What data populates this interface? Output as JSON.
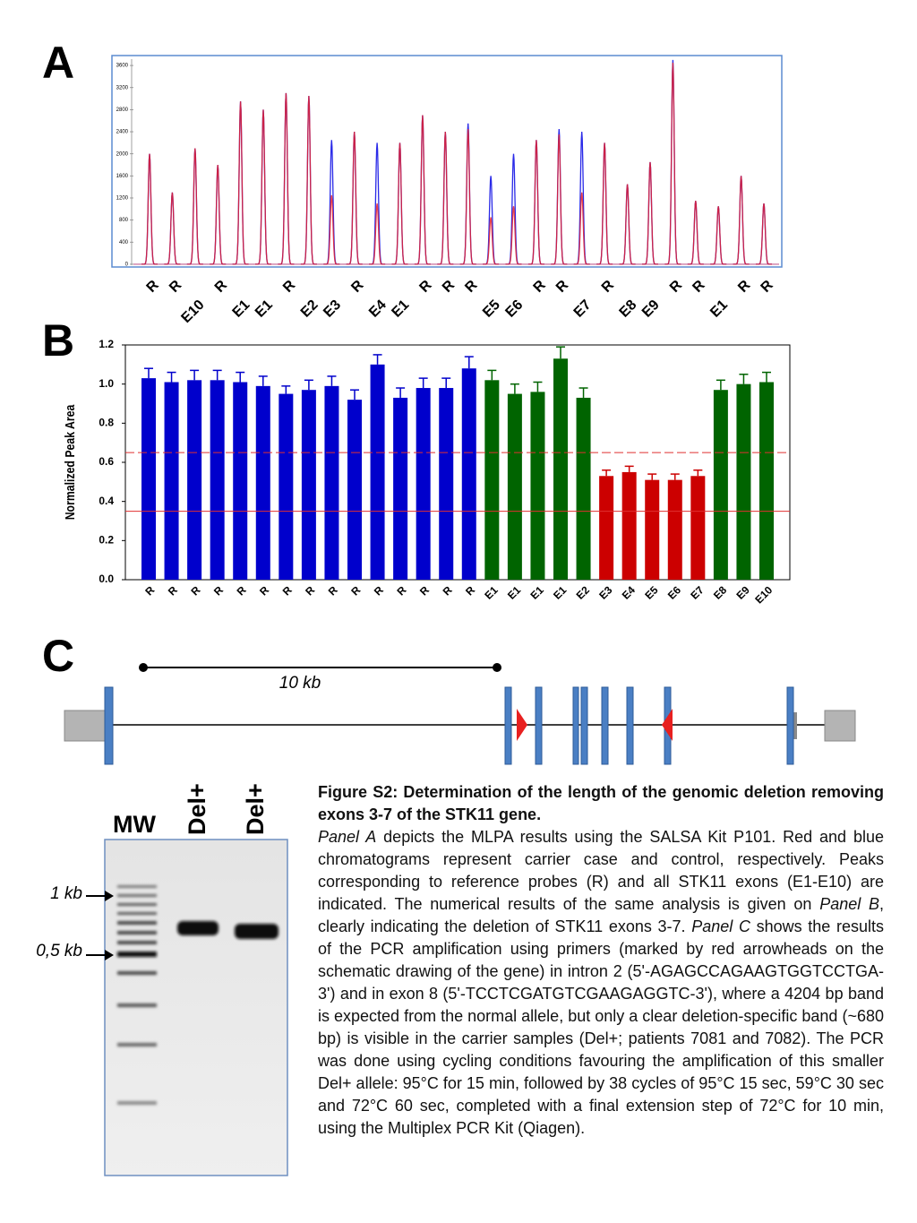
{
  "panels": [
    "A",
    "B",
    "C"
  ],
  "chart_data": [
    {
      "type": "peak",
      "categories": [
        "R",
        "R",
        "E10",
        "R",
        "E1",
        "E1",
        "R",
        "E2",
        "E3",
        "R",
        "E4",
        "E1",
        "R",
        "R",
        "R",
        "E5",
        "E6",
        "R",
        "R",
        "E7",
        "R",
        "E8",
        "E9",
        "R",
        "R",
        "E1",
        "R",
        "R"
      ],
      "series": [
        {
          "name": "Control",
          "color": "#2a2ae8",
          "values": [
            2000,
            1300,
            2100,
            1800,
            2950,
            2800,
            3100,
            3050,
            2250,
            2400,
            2200,
            2200,
            2700,
            2400,
            2550,
            1600,
            2000,
            2250,
            2450,
            2400,
            2200,
            1450,
            1850,
            3700,
            1150,
            1050,
            1600,
            1100
          ]
        },
        {
          "name": "Carrier",
          "color": "#e8202a",
          "values": [
            2000,
            1300,
            2100,
            1800,
            2950,
            2800,
            3100,
            3050,
            1250,
            2400,
            1100,
            2200,
            2700,
            2400,
            2450,
            850,
            1050,
            2250,
            2350,
            1300,
            2200,
            1450,
            1850,
            3650,
            1150,
            1050,
            1600,
            1100
          ]
        }
      ],
      "ylim": [
        -50,
        3780
      ],
      "yticks": [
        0,
        400,
        800,
        1200,
        1600,
        2000,
        2400,
        2800,
        3200,
        3600
      ]
    },
    {
      "type": "bar",
      "ylabel": "Normalized Peak Area",
      "categories": [
        "R",
        "R",
        "R",
        "R",
        "R",
        "R",
        "R",
        "R",
        "R",
        "R",
        "R",
        "R",
        "R",
        "R",
        "R",
        "E1",
        "E1",
        "E1",
        "E1",
        "E2",
        "E3",
        "E4",
        "E5",
        "E6",
        "E7",
        "E8",
        "E9",
        "E10"
      ],
      "values": [
        1.03,
        1.01,
        1.02,
        1.02,
        1.01,
        0.99,
        0.95,
        0.97,
        0.99,
        0.92,
        1.1,
        0.93,
        0.98,
        0.98,
        1.08,
        1.02,
        0.95,
        0.96,
        1.13,
        0.93,
        0.53,
        0.55,
        0.51,
        0.51,
        0.53,
        0.97,
        1.0,
        1.01
      ],
      "errors": [
        0.05,
        0.05,
        0.05,
        0.05,
        0.05,
        0.05,
        0.04,
        0.05,
        0.05,
        0.05,
        0.05,
        0.05,
        0.05,
        0.05,
        0.06,
        0.05,
        0.05,
        0.05,
        0.06,
        0.05,
        0.03,
        0.03,
        0.03,
        0.03,
        0.03,
        0.05,
        0.05,
        0.05
      ],
      "colors": [
        "#0000cc",
        "#0000cc",
        "#0000cc",
        "#0000cc",
        "#0000cc",
        "#0000cc",
        "#0000cc",
        "#0000cc",
        "#0000cc",
        "#0000cc",
        "#0000cc",
        "#0000cc",
        "#0000cc",
        "#0000cc",
        "#0000cc",
        "#006400",
        "#006400",
        "#006400",
        "#006400",
        "#006400",
        "#cc0000",
        "#cc0000",
        "#cc0000",
        "#cc0000",
        "#cc0000",
        "#006400",
        "#006400",
        "#006400"
      ],
      "reference_lines": [
        {
          "value": 0.65,
          "style": "dashed",
          "color": "#e03030"
        },
        {
          "value": 0.35,
          "style": "solid",
          "color": "#e03030"
        }
      ],
      "ylim": [
        0,
        1.2
      ],
      "yticks": [
        {
          "value": 0,
          "label": "0.0"
        },
        0.2,
        0.4,
        0.6,
        0.8,
        {
          "value": 1,
          "label": "1.0"
        },
        1.2
      ]
    }
  ],
  "diagram": {
    "scale_label": "10 kb"
  },
  "gel": {
    "lanes": [
      "MW",
      "Del+",
      "Del+"
    ],
    "markers": [
      "1 kb",
      "0,5 kb"
    ]
  },
  "caption": {
    "title": "Figure S2: Determination of the length of the genomic deletion removing exons 3-7 of the STK11 gene.",
    "body": [
      "Panel A",
      " depicts the MLPA results using the SALSA Kit P101. Red and blue chromatograms represent  carrier case and control, respectively. Peaks corresponding to reference probes (R) and all STK11 exons (E1-E10) are indicated. The numerical results of the same analysis is given on ",
      "Panel B",
      ", clearly indicating the deletion of STK11 exons 3-7. ",
      "Panel C",
      "  shows the results of the PCR amplification using primers (marked by red arrowheads on the schematic drawing of the gene) in intron 2 (5'-AGAGCCAGAAGTGGTCCTGA-3') and in exon 8 (5'-TCCTCGATGTCGAAGAGGTC-3'), where a 4204 bp band is expected from the normal allele, but only a clear deletion-specific band (~680 bp) is visible in the carrier samples (Del+; patients 7081 and 7082). The PCR was done using cycling conditions favouring the amplification of this smaller Del+ allele: 95°C for 15 min, followed by 38 cycles of 95°C 15 sec, 59°C 30 sec and 72°C 60 sec, completed with a final extension step of 72°C for 10 min, using the Multiplex PCR Kit (Qiagen)."
    ]
  }
}
